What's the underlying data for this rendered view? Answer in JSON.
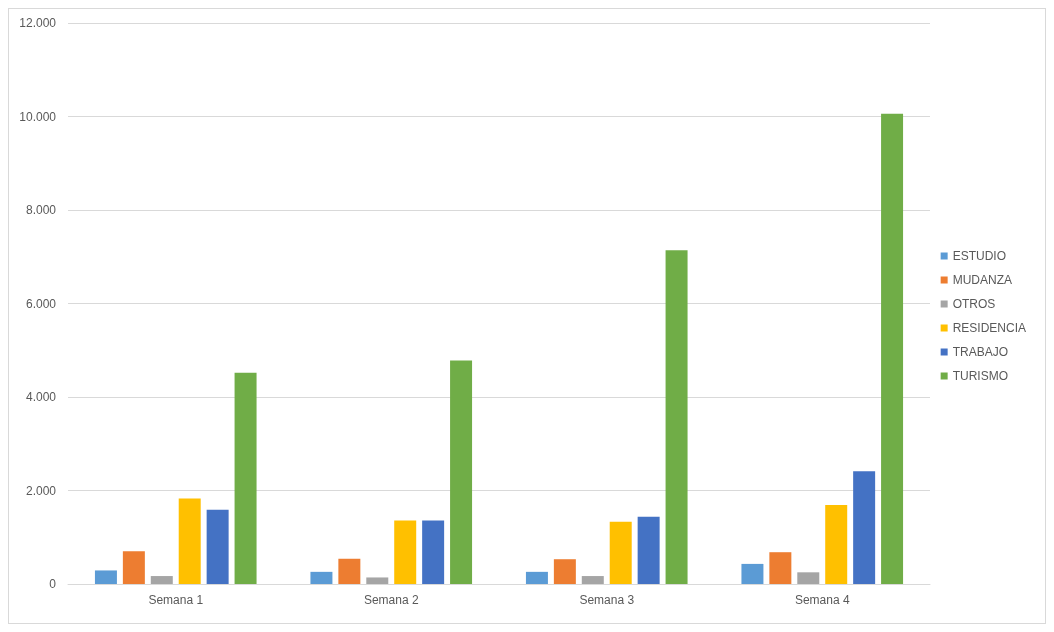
{
  "chart_data": {
    "type": "bar",
    "categories": [
      "Semana 1",
      "Semana 2",
      "Semana 3",
      "Semana 4"
    ],
    "series": [
      {
        "name": "ESTUDIO",
        "color": "#5b9bd5",
        "values": [
          290,
          260,
          260,
          430
        ]
      },
      {
        "name": "MUDANZA",
        "color": "#ed7d31",
        "values": [
          700,
          540,
          530,
          680
        ]
      },
      {
        "name": "OTROS",
        "color": "#a5a5a5",
        "values": [
          170,
          140,
          170,
          250
        ]
      },
      {
        "name": "RESIDENCIA",
        "color": "#ffc000",
        "values": [
          1830,
          1360,
          1330,
          1690
        ]
      },
      {
        "name": "TRABAJO",
        "color": "#4472c4",
        "values": [
          1590,
          1360,
          1440,
          2410
        ]
      },
      {
        "name": "TURISMO",
        "color": "#70ad47",
        "values": [
          4520,
          4780,
          7140,
          10060
        ]
      }
    ],
    "ylim": [
      0,
      12000
    ],
    "yticks": [
      0,
      {
        "value": 2000,
        "label": "2.000"
      },
      {
        "value": 4000,
        "label": "4.000"
      },
      {
        "value": 6000,
        "label": "6.000"
      },
      {
        "value": 8000,
        "label": "8.000"
      },
      {
        "value": 10000,
        "label": "10.000"
      },
      {
        "value": 12000,
        "label": "12.000"
      }
    ],
    "grid": "y",
    "legend": "right"
  }
}
